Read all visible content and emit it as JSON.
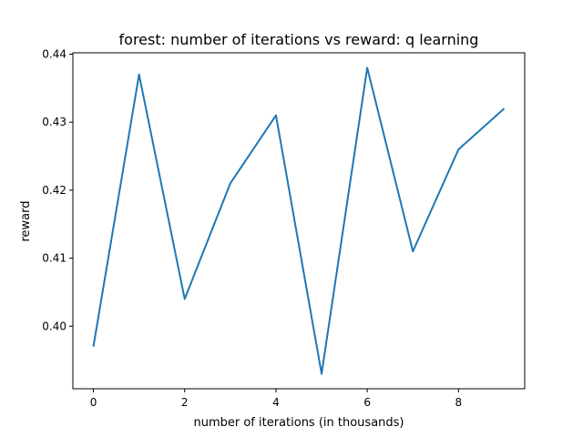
{
  "chart_data": {
    "type": "line",
    "title": "forest: number of iterations vs reward: q learning",
    "xlabel": "number of iterations (in thousands)",
    "ylabel": "reward",
    "x": [
      0,
      1,
      2,
      3,
      4,
      5,
      6,
      7,
      8,
      9
    ],
    "series": [
      {
        "values": [
          0.397,
          0.437,
          0.404,
          0.421,
          0.431,
          0.393,
          0.438,
          0.411,
          0.426,
          0.432
        ],
        "color": "#1f77b4"
      }
    ],
    "xlim": [
      -0.45,
      9.45
    ],
    "ylim": [
      0.3908,
      0.4402
    ],
    "xticks": [
      0,
      2,
      4,
      6,
      8
    ],
    "xtick_labels": [
      "0",
      "2",
      "4",
      "6",
      "8"
    ],
    "yticks": [
      0.4,
      0.41,
      0.42,
      0.43,
      0.44
    ],
    "ytick_labels": [
      "0.40",
      "0.41",
      "0.42",
      "0.43",
      "0.44"
    ],
    "grid": false,
    "legend": "none"
  }
}
